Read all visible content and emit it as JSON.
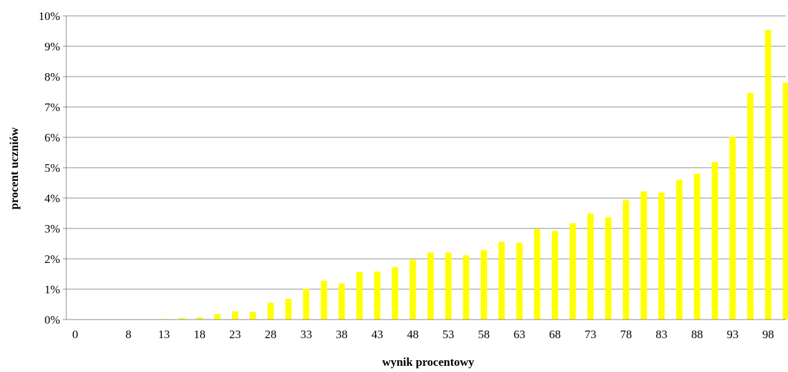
{
  "chart_data": {
    "type": "bar",
    "xlabel": "wynik procentowy",
    "ylabel": "procent uczniów",
    "ylim": [
      0,
      10
    ],
    "y_ticks": [
      "0%",
      "1%",
      "2%",
      "3%",
      "4%",
      "5%",
      "6%",
      "7%",
      "8%",
      "9%",
      "10%"
    ],
    "grid": true,
    "bar_color": "#ffff00",
    "categories": [
      "0",
      "3",
      "5",
      "8",
      "10",
      "13",
      "15",
      "18",
      "20",
      "23",
      "25",
      "28",
      "30",
      "33",
      "35",
      "38",
      "40",
      "43",
      "45",
      "48",
      "50",
      "53",
      "55",
      "58",
      "60",
      "63",
      "65",
      "68",
      "70",
      "73",
      "75",
      "78",
      "80",
      "83",
      "85",
      "88",
      "90",
      "93",
      "95",
      "98",
      "100"
    ],
    "category_labels_shown": [
      "0",
      "8",
      "13",
      "18",
      "23",
      "28",
      "33",
      "38",
      "43",
      "48",
      "53",
      "58",
      "63",
      "68",
      "73",
      "78",
      "83",
      "88",
      "93",
      "98"
    ],
    "values": [
      0,
      0,
      0,
      0,
      0,
      0.02,
      0.05,
      0.07,
      0.18,
      0.27,
      0.25,
      0.55,
      0.68,
      1.01,
      1.28,
      1.19,
      1.57,
      1.58,
      1.73,
      1.97,
      2.21,
      2.21,
      2.12,
      2.29,
      2.56,
      2.53,
      2.98,
      2.92,
      3.17,
      3.49,
      3.37,
      3.93,
      4.22,
      4.18,
      4.6,
      4.8,
      5.19,
      6.02,
      7.46,
      9.53,
      7.8
    ]
  }
}
